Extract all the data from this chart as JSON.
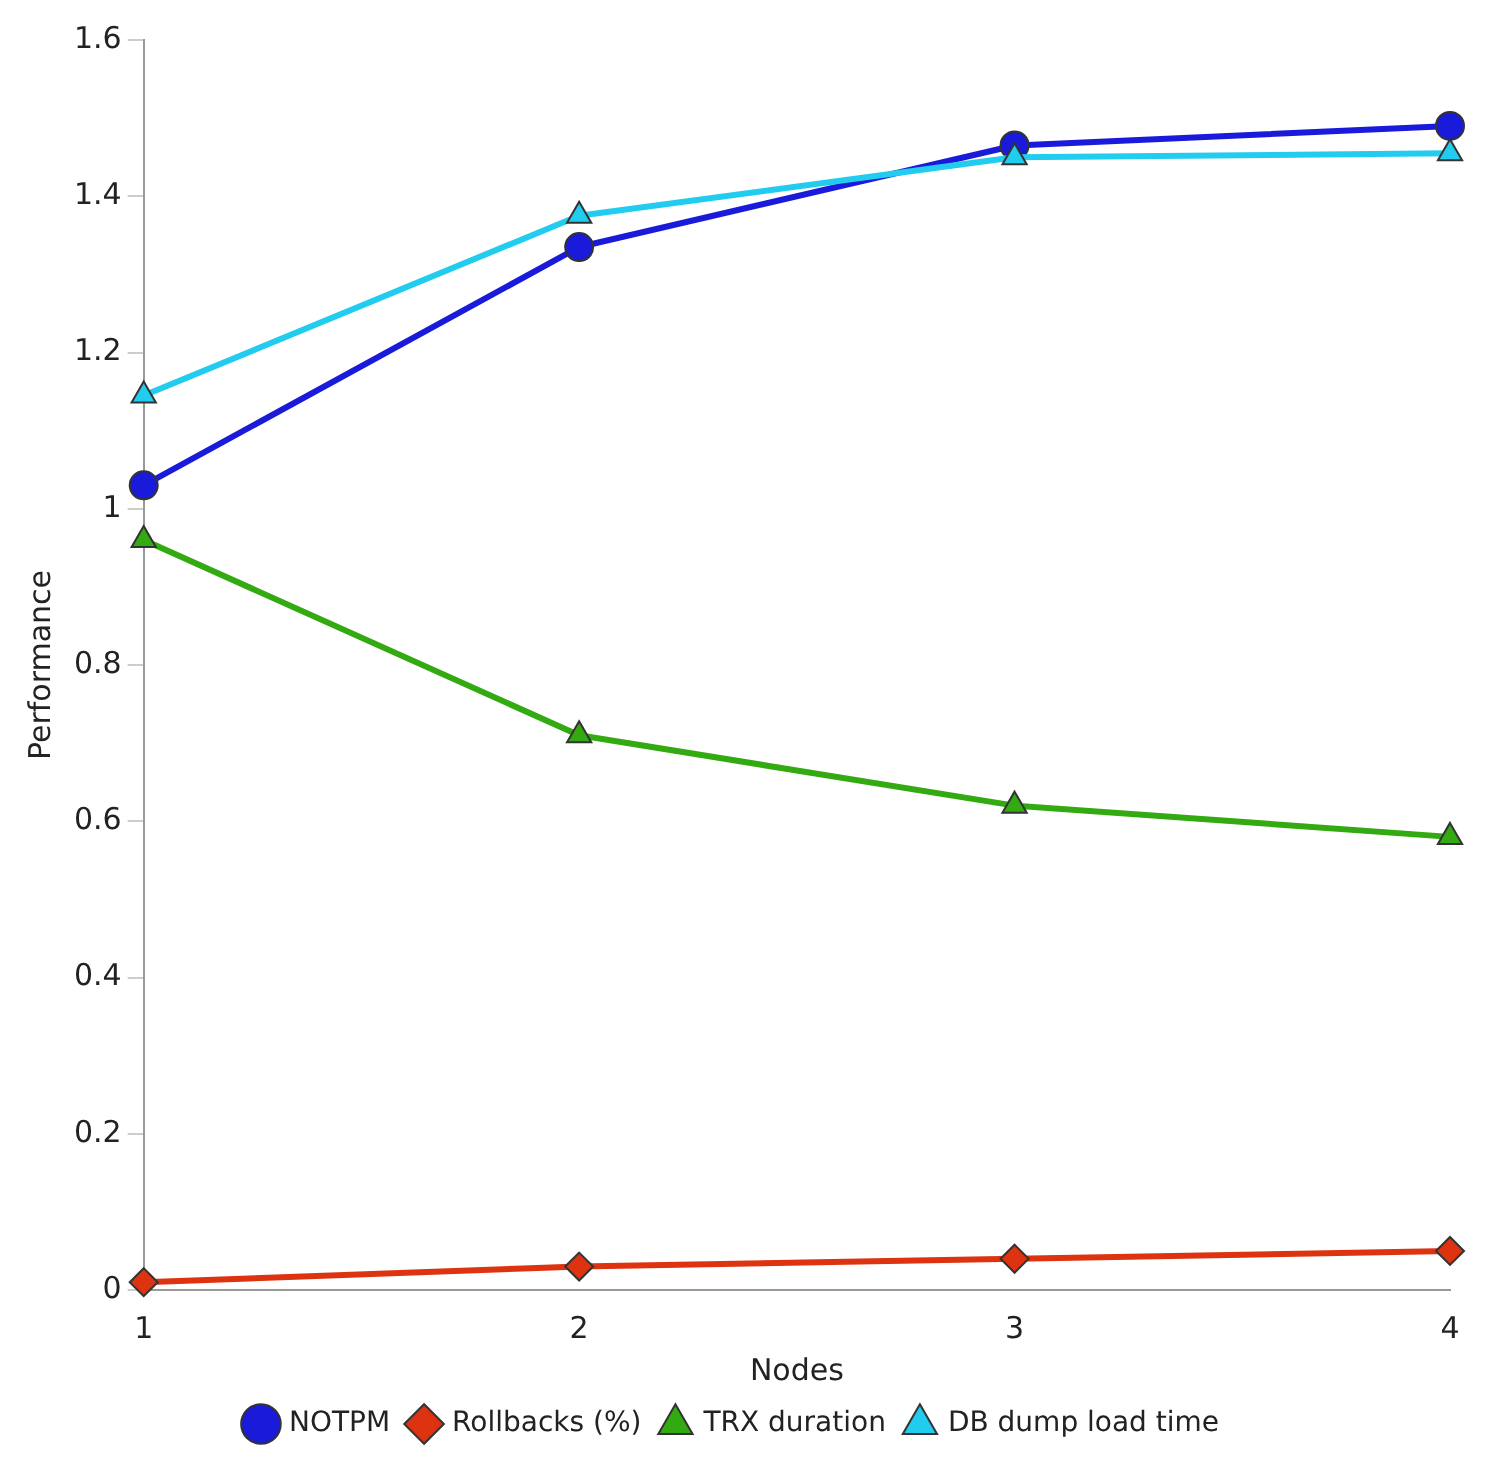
{
  "chart_data": {
    "type": "line",
    "xlabel": "Nodes",
    "ylabel": "Performance",
    "x": [
      1,
      2,
      3,
      4
    ],
    "xlim": [
      1,
      4
    ],
    "xticks": [
      1,
      2,
      3,
      4
    ],
    "ylim": [
      0,
      1.6
    ],
    "yticks": [
      0,
      {
        "value": 0.2,
        "label": "0.2"
      },
      {
        "value": 0.4,
        "label": "0.4"
      },
      {
        "value": 0.6,
        "label": "0.6"
      },
      {
        "value": 0.8,
        "label": "0.8"
      },
      1,
      {
        "value": 1.2,
        "label": "1.2"
      },
      {
        "value": 1.4,
        "label": "1.4"
      },
      {
        "value": 1.6,
        "label": "1.6"
      }
    ],
    "grid": false,
    "legend": "bottom",
    "line_style": "solid",
    "series": [
      {
        "name": "NOTPM",
        "color": "#1a1adb",
        "marker": "circle",
        "values": [
          1.03,
          1.335,
          1.465,
          1.49
        ]
      },
      {
        "name": "Rollbacks (%)",
        "color": "#dd3311",
        "marker": "diamond",
        "values": [
          0.01,
          0.03,
          0.04,
          0.05
        ]
      },
      {
        "name": "TRX duration",
        "color": "#33aa11",
        "marker": "triangle",
        "values": [
          0.96,
          0.71,
          0.62,
          0.58
        ]
      },
      {
        "name": "DB dump load time",
        "color": "#22ccee",
        "marker": "triangle",
        "values": [
          1.145,
          1.375,
          1.45,
          1.455
        ]
      }
    ]
  }
}
